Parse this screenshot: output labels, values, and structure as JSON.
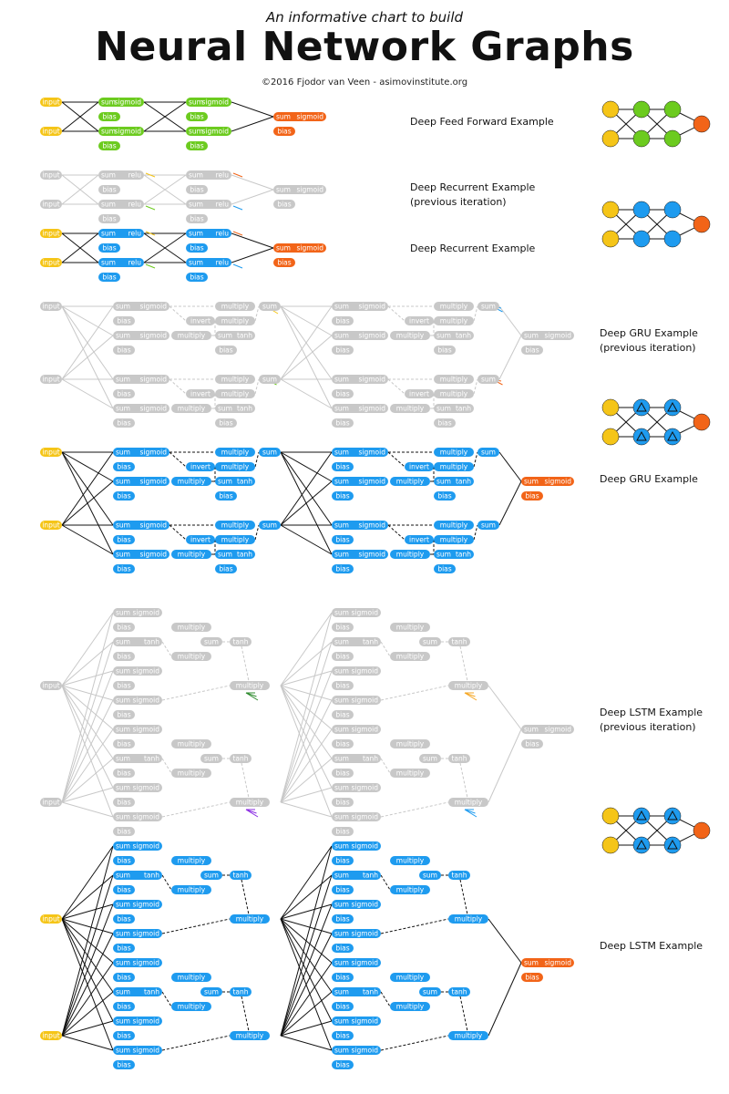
{
  "header": {
    "subtitle": "An informative chart to build",
    "title": "Neural Network Graphs",
    "credit": "©2016 Fjodor van Veen - asimovinstitute.org"
  },
  "colors": {
    "input": "#F5C518",
    "ff": "#6CCB1F",
    "recurrent": "#1E9BEF",
    "gray": "#C8C8C8",
    "output": "#F26418",
    "line_gray": "#C8C8C8",
    "line_dark": "#111111"
  },
  "node_text": {
    "input": "input",
    "sum": "sum",
    "sigmoid": "sigmoid",
    "relu": "relu",
    "tanh": "tanh",
    "bias": "bias",
    "multiply": "multiply",
    "invert": "invert"
  },
  "sections": [
    {
      "label": "Deep Feed Forward Example",
      "icon": "ff"
    },
    {
      "label": "Deep Recurrent Example\n(previous iteration)",
      "icon": "recurrent"
    },
    {
      "label": "Deep Recurrent Example",
      "icon": "none"
    },
    {
      "label": "Deep GRU Example\n(previous iteration)",
      "icon": "none"
    },
    {
      "label": "Deep GRU Example",
      "icon": "gated"
    },
    {
      "label": "Deep LSTM Example\n(previous iteration)",
      "icon": "none"
    },
    {
      "label": "Deep LSTM Example",
      "icon": "gated"
    }
  ]
}
